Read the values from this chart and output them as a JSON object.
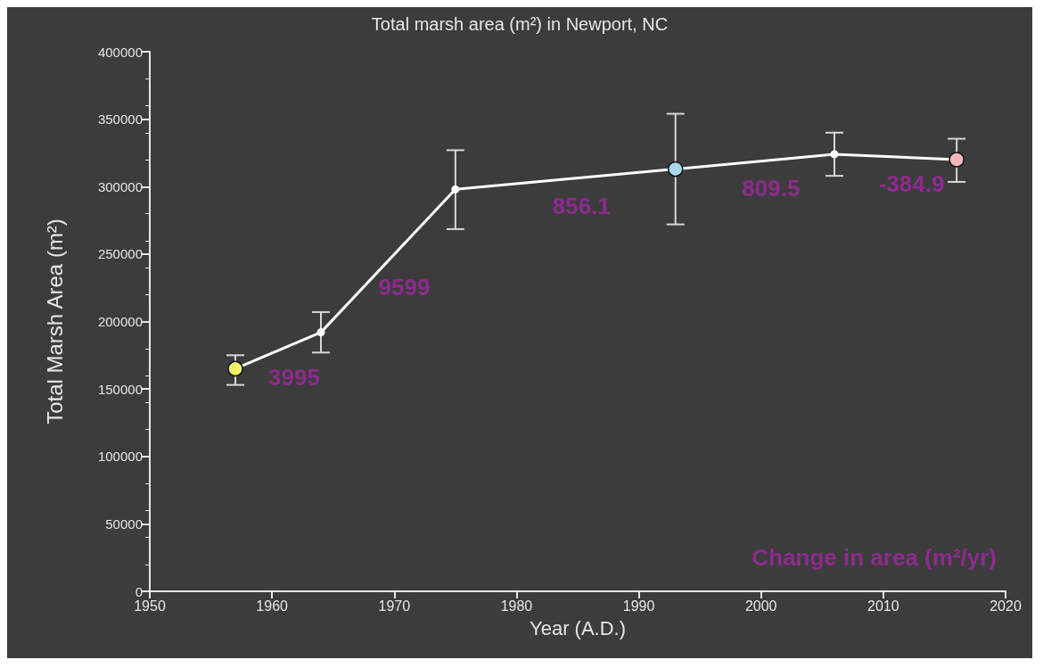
{
  "chart_data": {
    "type": "line",
    "title": "Total marsh area (m²) in Newport, NC",
    "xlabel": "Year (A.D.)",
    "ylabel": "Total Marsh Area (m²)",
    "x": [
      1957,
      1964,
      1975,
      1993,
      2006,
      2016
    ],
    "values": [
      165000,
      192000,
      298000,
      313000,
      324000,
      320000
    ],
    "colors": [
      "#f4f06a",
      "#ffffff",
      "#ffffff",
      "#a8d8ee",
      "#ffffff",
      "#f4b8b8"
    ],
    "errors": [
      [
        153000,
        175000
      ],
      [
        177000,
        207000
      ],
      [
        268500,
        327000
      ],
      [
        272000,
        354000
      ],
      [
        308000,
        340000
      ],
      [
        303500,
        335500
      ]
    ],
    "color": "#ffffff",
    "marker": "circle",
    "line_style": "solid",
    "grid": false,
    "xlim": [
      1950,
      2020
    ],
    "xticks": [
      1950,
      1960,
      1970,
      1980,
      1990,
      2000,
      2010,
      2020
    ],
    "ylim": [
      0,
      400000
    ],
    "yticks": [
      0,
      50000,
      100000,
      150000,
      200000,
      250000,
      300000,
      350000,
      400000
    ],
    "annotations": [
      "3995",
      "9599",
      "856.1",
      "809.5",
      "-384.9",
      "Change in area (m²/yr)"
    ]
  }
}
